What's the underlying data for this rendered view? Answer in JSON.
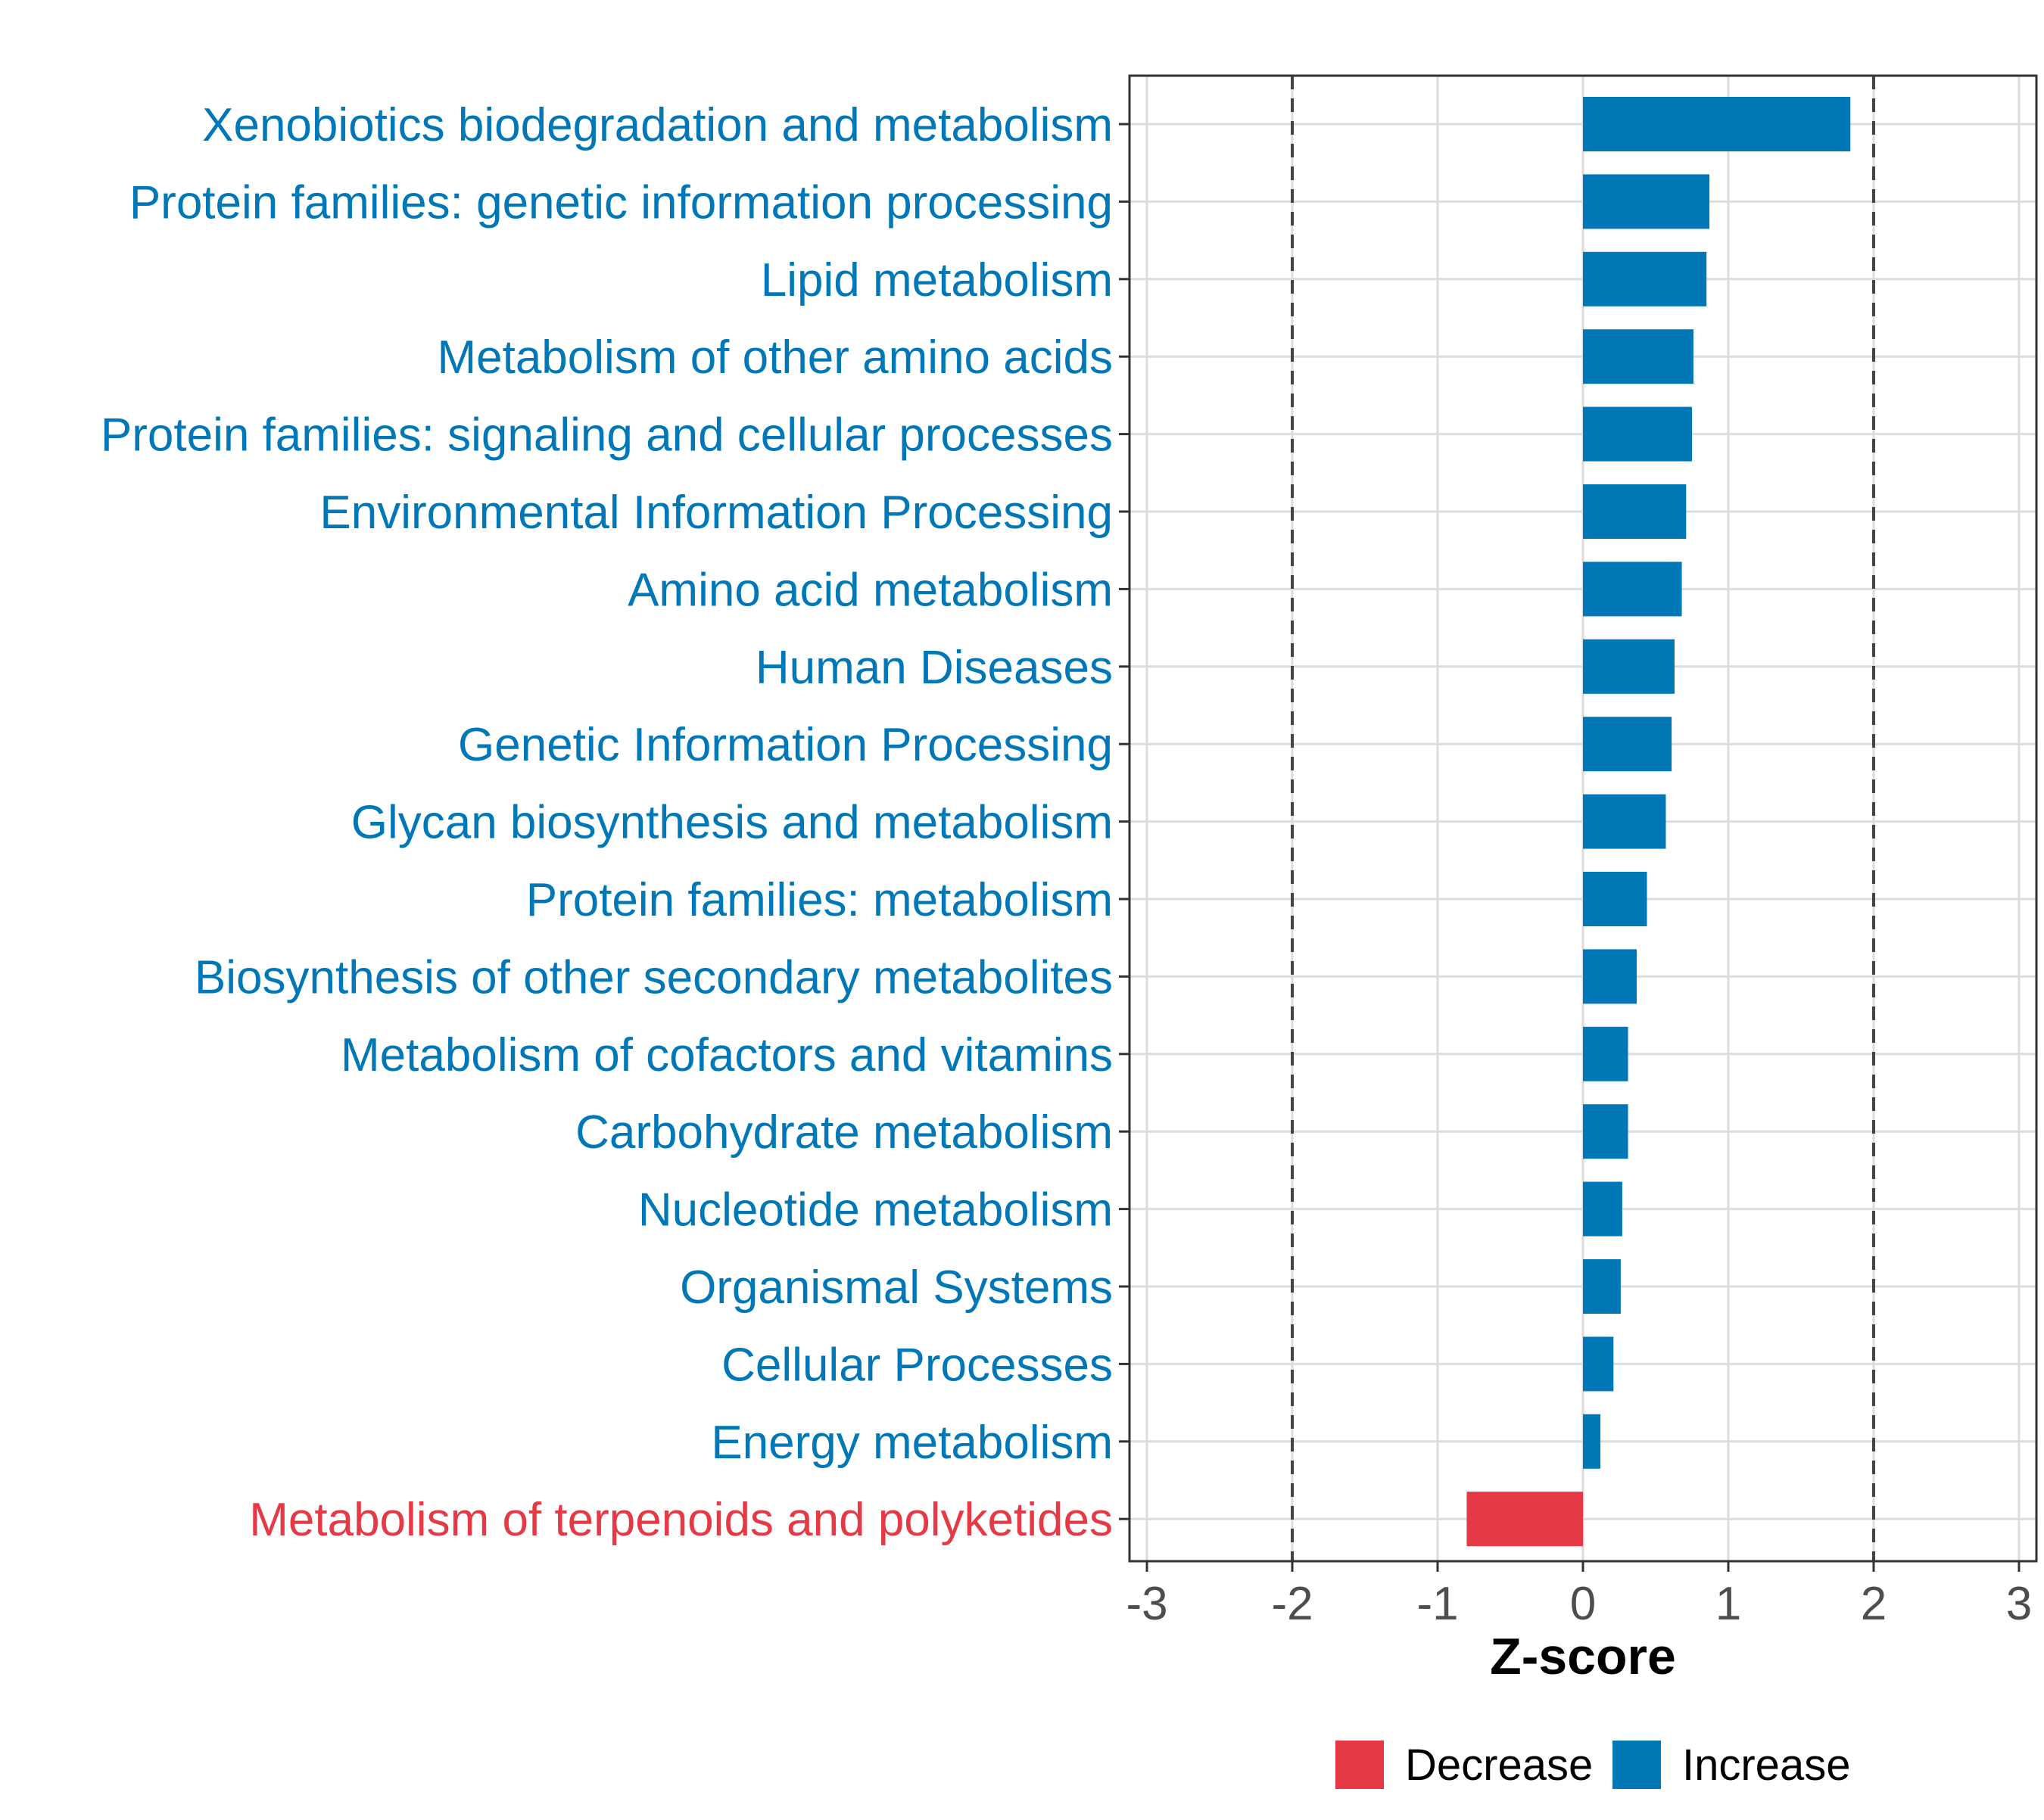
{
  "chart_data": {
    "type": "bar",
    "orientation": "horizontal",
    "categories": [
      "Xenobiotics biodegradation and metabolism",
      "Protein families: genetic information processing",
      "Lipid metabolism",
      "Metabolism of other amino acids",
      "Protein families: signaling and cellular processes",
      "Environmental Information Processing",
      "Amino acid metabolism",
      "Human Diseases",
      "Genetic Information Processing",
      "Glycan biosynthesis and metabolism",
      "Protein families: metabolism",
      "Biosynthesis of other secondary metabolites",
      "Metabolism of cofactors and vitamins",
      "Carbohydrate metabolism",
      "Nucleotide metabolism",
      "Organismal Systems",
      "Cellular Processes",
      "Energy metabolism",
      "Metabolism of terpenoids and polyketides"
    ],
    "values": [
      1.84,
      0.87,
      0.85,
      0.76,
      0.75,
      0.71,
      0.68,
      0.63,
      0.61,
      0.57,
      0.44,
      0.37,
      0.31,
      0.31,
      0.27,
      0.26,
      0.21,
      0.12,
      -0.8
    ],
    "groups": [
      "Increase",
      "Increase",
      "Increase",
      "Increase",
      "Increase",
      "Increase",
      "Increase",
      "Increase",
      "Increase",
      "Increase",
      "Increase",
      "Increase",
      "Increase",
      "Increase",
      "Increase",
      "Increase",
      "Increase",
      "Increase",
      "Decrease"
    ],
    "xlabel": "Z-score",
    "ylabel": "",
    "xlim": [
      -3.12,
      3.12
    ],
    "xticks": [
      -3,
      -2,
      -1,
      0,
      1,
      2,
      3
    ],
    "xtick_labels": [
      "-3",
      "-2",
      "-1",
      "0",
      "1",
      "2",
      "3"
    ],
    "reference_lines": [
      -2,
      2
    ],
    "grid": true,
    "legend": {
      "position": "bottom",
      "entries": [
        {
          "label": "Decrease",
          "color": "#E63946"
        },
        {
          "label": "Increase",
          "color": "#0077B6"
        }
      ]
    },
    "colors": {
      "Increase": "#0077B6",
      "Decrease": "#E63946"
    }
  }
}
